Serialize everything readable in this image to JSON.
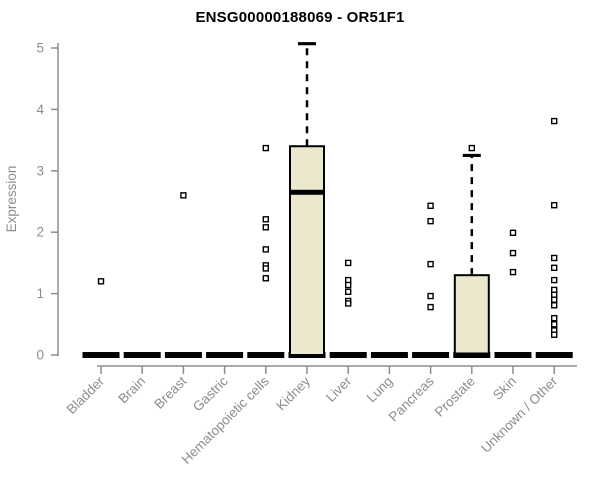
{
  "chart_data": {
    "type": "boxplot",
    "title": "ENSG00000188069 - OR51F1",
    "ylabel": "Expression",
    "xlabel": "",
    "ylim": [
      0,
      5
    ],
    "yticks": [
      0,
      1,
      2,
      3,
      4,
      5
    ],
    "grid": false,
    "legend": "none",
    "categories": [
      "Bladder",
      "Brain",
      "Breast",
      "Gastric",
      "Hematopoietic cells",
      "Kidney",
      "Liver",
      "Lung",
      "Pancreas",
      "Prostate",
      "Skin",
      "Unknown / Other"
    ],
    "boxes": [
      {
        "category": "Bladder",
        "q1": 0,
        "median": 0,
        "q3": 0,
        "whisker_low": 0,
        "whisker_high": 0,
        "outliers": [
          1.2
        ]
      },
      {
        "category": "Brain",
        "q1": 0,
        "median": 0,
        "q3": 0,
        "whisker_low": 0,
        "whisker_high": 0,
        "outliers": []
      },
      {
        "category": "Breast",
        "q1": 0,
        "median": 0,
        "q3": 0,
        "whisker_low": 0,
        "whisker_high": 0,
        "outliers": [
          2.6
        ]
      },
      {
        "category": "Gastric",
        "q1": 0,
        "median": 0,
        "q3": 0,
        "whisker_low": 0,
        "whisker_high": 0,
        "outliers": []
      },
      {
        "category": "Hematopoietic cells",
        "q1": 0,
        "median": 0,
        "q3": 0,
        "whisker_low": 0,
        "whisker_high": 0,
        "outliers": [
          3.37,
          2.21,
          2.08,
          1.72,
          1.46,
          1.41,
          1.25
        ]
      },
      {
        "category": "Kidney",
        "q1": 0,
        "median": 2.65,
        "q3": 3.4,
        "whisker_low": 0,
        "whisker_high": 5.07,
        "outliers": []
      },
      {
        "category": "Liver",
        "q1": 0,
        "median": 0,
        "q3": 0,
        "whisker_low": 0,
        "whisker_high": 0,
        "outliers": [
          1.5,
          1.22,
          1.14,
          1.03,
          0.88,
          0.84
        ]
      },
      {
        "category": "Lung",
        "q1": 0,
        "median": 0,
        "q3": 0,
        "whisker_low": 0,
        "whisker_high": 0,
        "outliers": []
      },
      {
        "category": "Pancreas",
        "q1": 0,
        "median": 0,
        "q3": 0,
        "whisker_low": 0,
        "whisker_high": 0,
        "outliers": [
          2.43,
          2.18,
          1.48,
          0.96,
          0.78
        ]
      },
      {
        "category": "Prostate",
        "q1": 0,
        "median": 0,
        "q3": 1.3,
        "whisker_low": 0,
        "whisker_high": 3.25,
        "outliers": [
          3.37
        ]
      },
      {
        "category": "Skin",
        "q1": 0,
        "median": 0,
        "q3": 0,
        "whisker_low": 0,
        "whisker_high": 0,
        "outliers": [
          1.99,
          1.66,
          1.35
        ]
      },
      {
        "category": "Unknown / Other",
        "q1": 0,
        "median": 0,
        "q3": 0,
        "whisker_low": 0,
        "whisker_high": 0,
        "outliers": [
          3.81,
          2.44,
          1.58,
          1.42,
          1.22,
          1.06,
          0.98,
          0.9,
          0.81,
          0.6,
          0.5,
          0.4,
          0.33
        ]
      }
    ],
    "colors": {
      "box_fill": "#ece8cd",
      "box_stroke": "#000000",
      "median": "#000000",
      "outlier_stroke": "#000000",
      "outlier_fill": "#ffffff",
      "axis": "#8d8d8d",
      "tick_label": "#8d8d8d",
      "title": "#000000",
      "background": "#ffffff"
    }
  }
}
